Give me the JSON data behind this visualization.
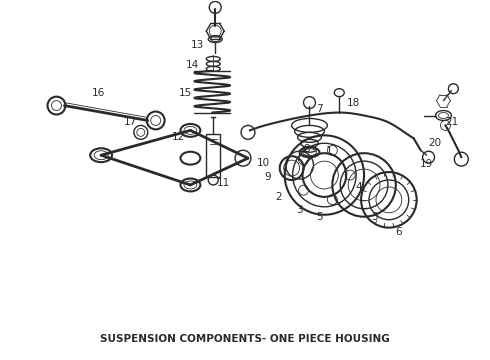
{
  "title": "SUSPENSION COMPONENTS- ONE PIECE HOUSING",
  "background_color": "#ffffff",
  "line_color": "#2a2a2a",
  "title_fontsize": 7.5,
  "title_fontweight": "bold",
  "fig_width": 4.9,
  "fig_height": 3.6,
  "dpi": 100
}
